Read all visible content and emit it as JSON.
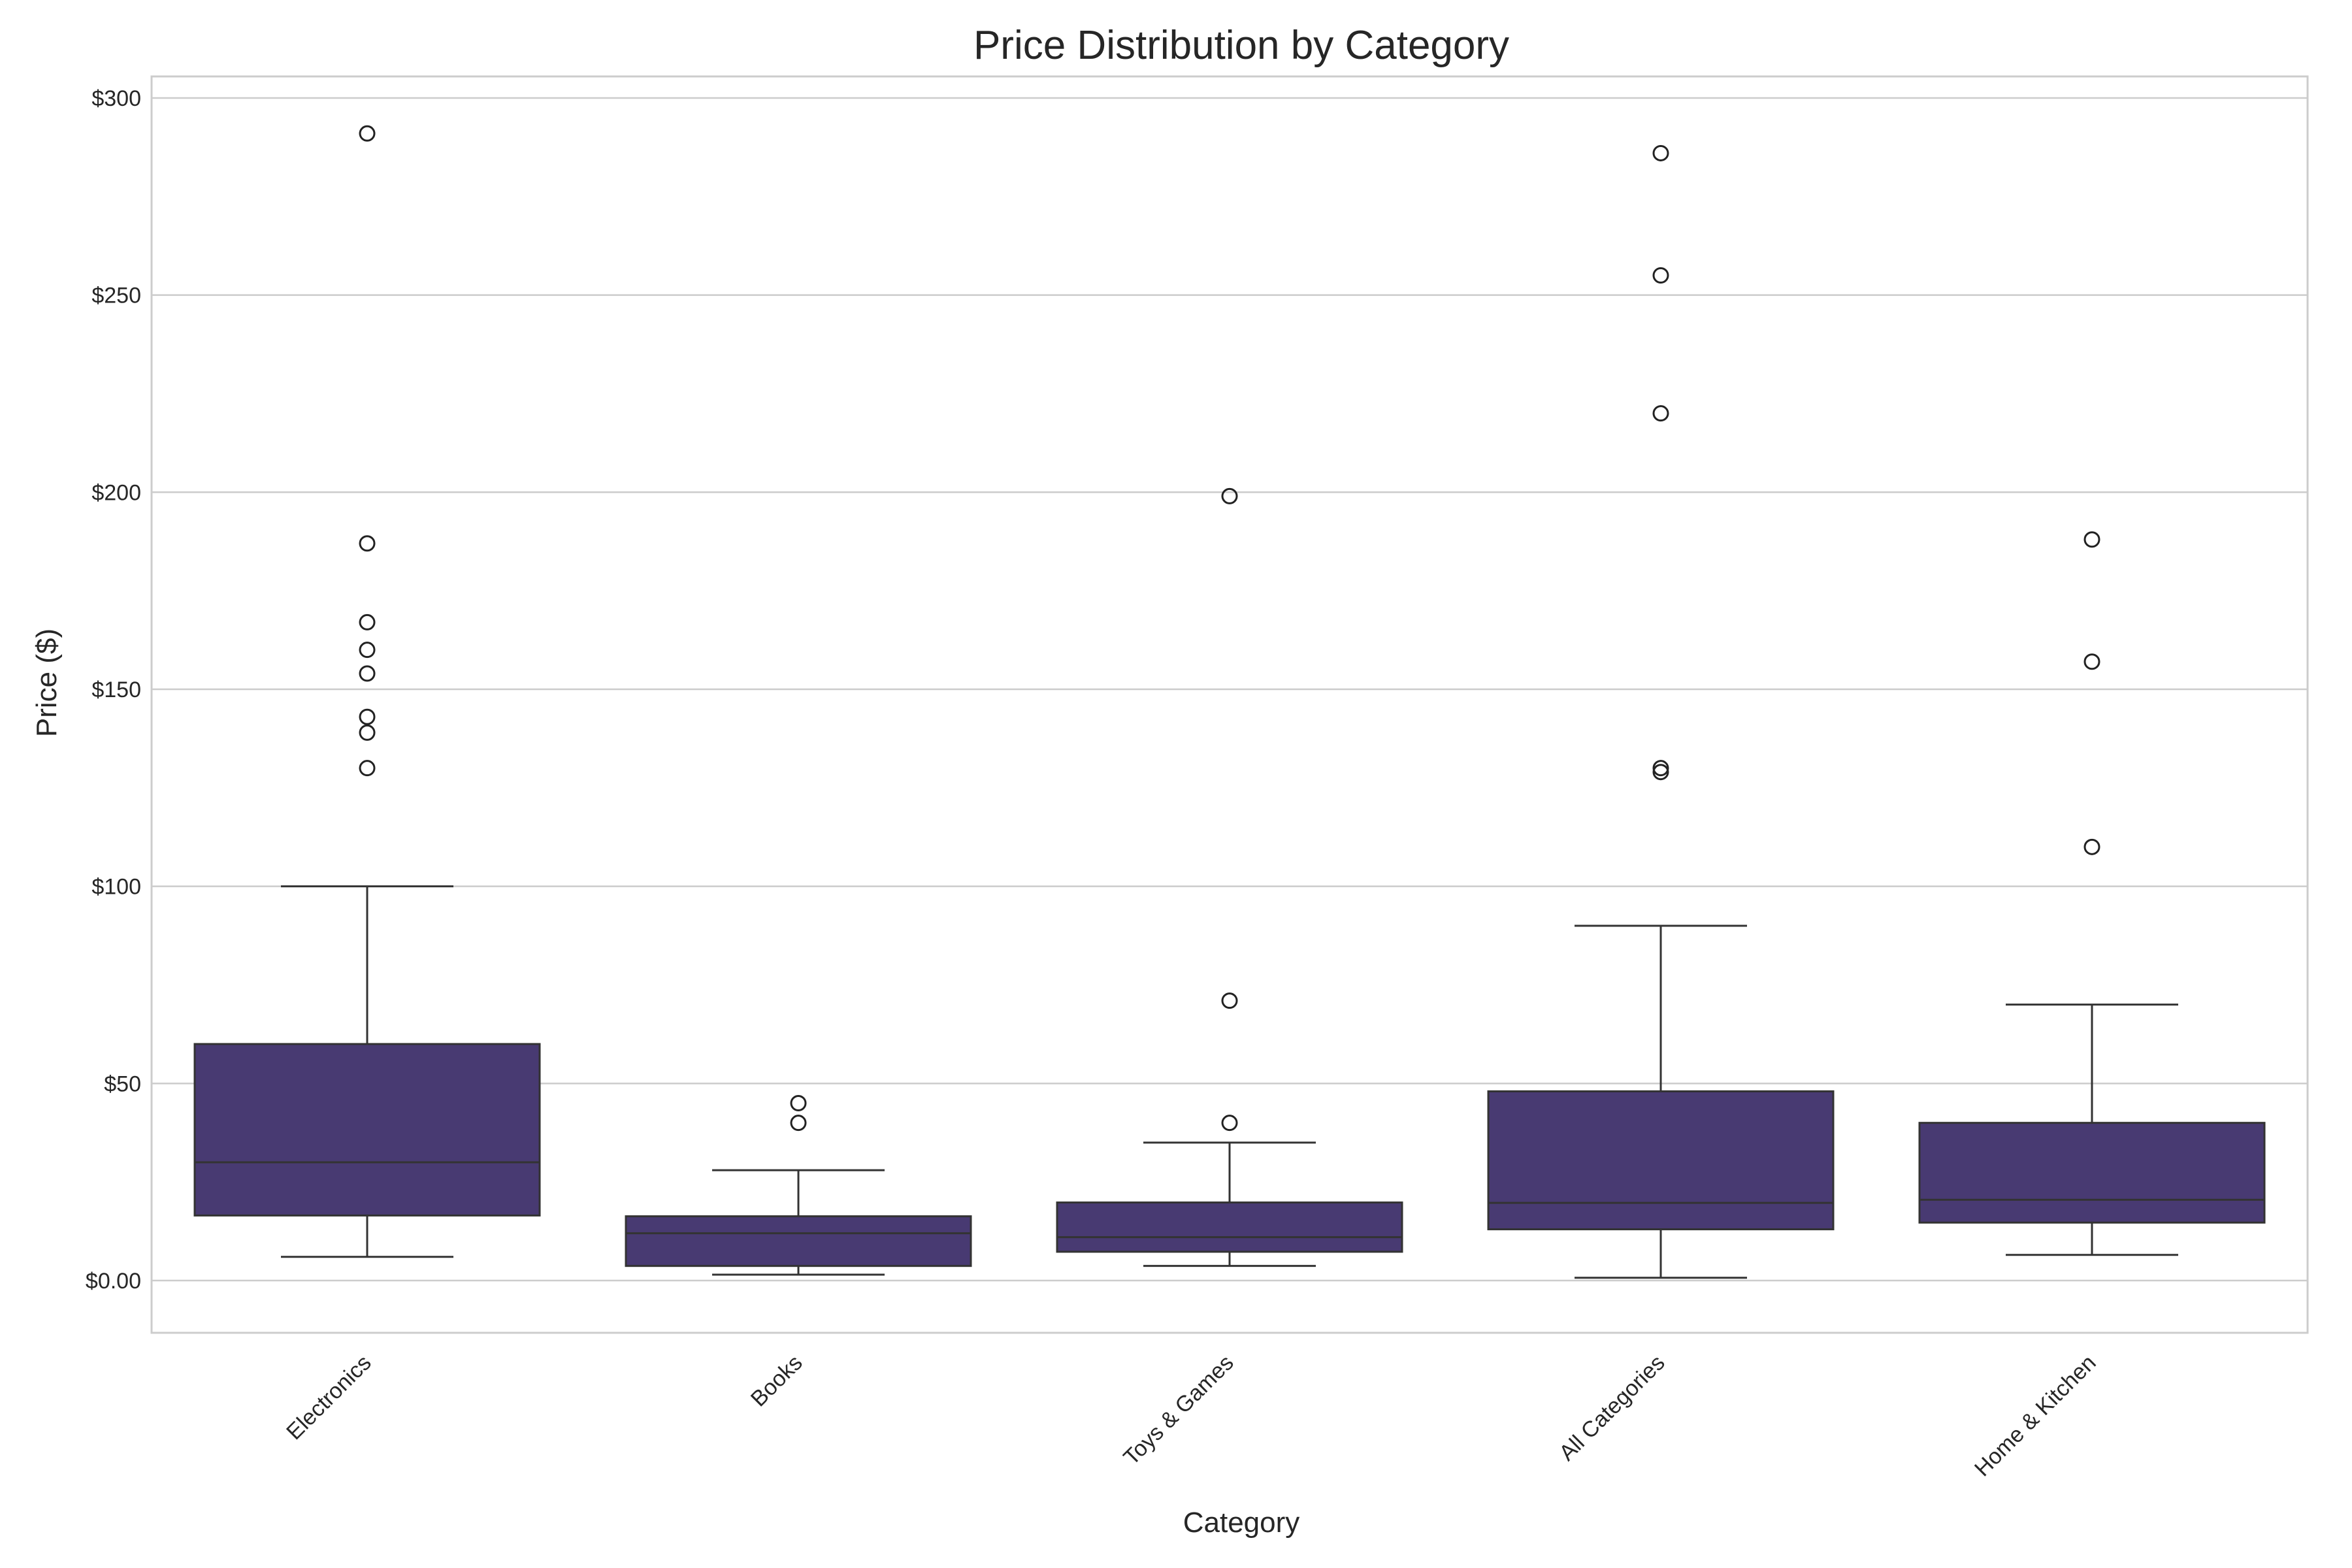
{
  "chart_data": {
    "type": "box",
    "title": "Price Distribution by Category",
    "xlabel": "Category",
    "ylabel": "Price ($)",
    "ylim": [
      -14,
      300
    ],
    "yticks": [
      0,
      50,
      100,
      150,
      200,
      250,
      300
    ],
    "ytick_labels": [
      "$0.00",
      "$50",
      "$100",
      "$150",
      "$200",
      "$250",
      "$300"
    ],
    "grid": true,
    "box_color": "#483a72",
    "line_color": "#333333",
    "categories": [
      "Electronics",
      "Books",
      "Toys & Games",
      "All Categories",
      "Home & Kitchen"
    ],
    "boxes": [
      {
        "category": "Electronics",
        "whisker_low": 6,
        "q1": 16.5,
        "median": 30,
        "q3": 60,
        "whisker_high": 100,
        "outliers": [
          291,
          187,
          167,
          160,
          154,
          143,
          139,
          130
        ]
      },
      {
        "category": "Books",
        "whisker_low": 1.5,
        "q1": 3.7,
        "median": 12,
        "q3": 16.3,
        "whisker_high": 28,
        "outliers": [
          45,
          40
        ]
      },
      {
        "category": "Toys & Games",
        "whisker_low": 3.7,
        "q1": 7.3,
        "median": 11,
        "q3": 19.8,
        "whisker_high": 35,
        "outliers": [
          199,
          71,
          40
        ]
      },
      {
        "category": "All Categories",
        "whisker_low": 0.7,
        "q1": 13,
        "median": 19.7,
        "q3": 48,
        "whisker_high": 90,
        "outliers": [
          286,
          255,
          220,
          130,
          129
        ]
      },
      {
        "category": "Home & Kitchen",
        "whisker_low": 6.5,
        "q1": 14.7,
        "median": 20.5,
        "q3": 40,
        "whisker_high": 70,
        "outliers": [
          188,
          157,
          110
        ]
      }
    ]
  }
}
